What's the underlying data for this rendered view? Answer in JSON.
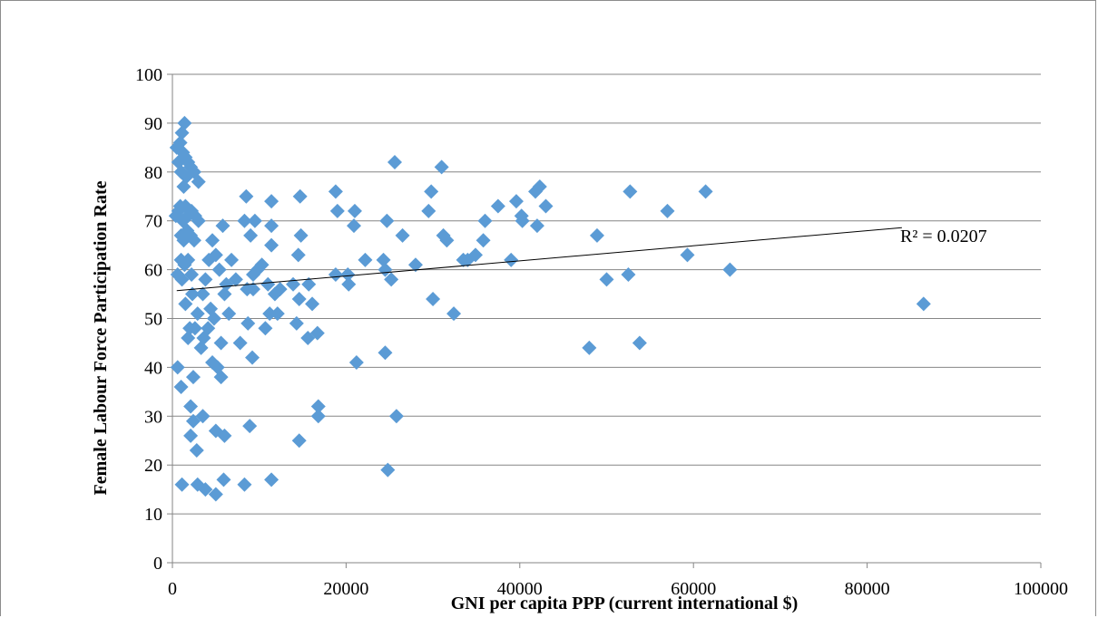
{
  "chart_data": {
    "type": "scatter",
    "title": "",
    "xlabel": "GNI per capita PPP (current international  $)",
    "ylabel": "Female Labour Force Participation Rate",
    "xlim": [
      0,
      100000
    ],
    "ylim": [
      0,
      100
    ],
    "x_ticks": [
      0,
      20000,
      40000,
      60000,
      80000,
      100000
    ],
    "y_ticks": [
      0,
      10,
      20,
      30,
      40,
      50,
      60,
      70,
      80,
      90,
      100
    ],
    "x_tick_labels": [
      "0",
      "20000",
      "40000",
      "60000",
      "80000",
      "100000"
    ],
    "y_tick_labels": [
      "0",
      "10",
      "20",
      "30",
      "40",
      "50",
      "60",
      "70",
      "80",
      "90",
      "100"
    ],
    "grid": "horizontal",
    "marker": "diamond",
    "marker_color": "#5b9bd5",
    "trendline": {
      "type": "linear",
      "x": [
        500,
        84000
      ],
      "y": [
        55.7,
        68.6
      ],
      "label": "R² = 0.0207"
    },
    "points": [
      [
        500,
        85
      ],
      [
        700,
        82
      ],
      [
        900,
        86
      ],
      [
        1100,
        88
      ],
      [
        1400,
        90
      ],
      [
        1200,
        84
      ],
      [
        1000,
        80
      ],
      [
        1300,
        77
      ],
      [
        1500,
        83
      ],
      [
        1800,
        82
      ],
      [
        2100,
        81
      ],
      [
        2500,
        80
      ],
      [
        3000,
        78
      ],
      [
        1600,
        79
      ],
      [
        400,
        71
      ],
      [
        700,
        72
      ],
      [
        900,
        73
      ],
      [
        1200,
        70
      ],
      [
        1500,
        73
      ],
      [
        1800,
        71
      ],
      [
        2200,
        72
      ],
      [
        2600,
        71
      ],
      [
        3000,
        70
      ],
      [
        1000,
        67
      ],
      [
        1300,
        66
      ],
      [
        1700,
        68
      ],
      [
        2100,
        67
      ],
      [
        2500,
        66
      ],
      [
        1000,
        62
      ],
      [
        1400,
        61
      ],
      [
        1800,
        62
      ],
      [
        2200,
        59
      ],
      [
        600,
        59
      ],
      [
        1100,
        58
      ],
      [
        1500,
        53
      ],
      [
        2300,
        55
      ],
      [
        2900,
        51
      ],
      [
        2000,
        48
      ],
      [
        2600,
        48
      ],
      [
        1800,
        46
      ],
      [
        3500,
        55
      ],
      [
        3800,
        58
      ],
      [
        4200,
        62
      ],
      [
        4600,
        66
      ],
      [
        5000,
        63
      ],
      [
        5400,
        60
      ],
      [
        5800,
        69
      ],
      [
        6200,
        57
      ],
      [
        4400,
        52
      ],
      [
        4800,
        50
      ],
      [
        3600,
        46
      ],
      [
        4100,
        48
      ],
      [
        3300,
        44
      ],
      [
        6000,
        55
      ],
      [
        6500,
        51
      ],
      [
        6800,
        62
      ],
      [
        5600,
        45
      ],
      [
        4600,
        41
      ],
      [
        5200,
        40
      ],
      [
        5600,
        38
      ],
      [
        600,
        40
      ],
      [
        1000,
        36
      ],
      [
        2400,
        38
      ],
      [
        2100,
        32
      ],
      [
        2400,
        29
      ],
      [
        3500,
        30
      ],
      [
        2100,
        26
      ],
      [
        2800,
        23
      ],
      [
        5000,
        27
      ],
      [
        6000,
        26
      ],
      [
        1100,
        16
      ],
      [
        2900,
        16
      ],
      [
        3800,
        15
      ],
      [
        5000,
        14
      ],
      [
        5900,
        17
      ],
      [
        8300,
        16
      ],
      [
        11400,
        17
      ],
      [
        7300,
        58
      ],
      [
        7800,
        45
      ],
      [
        8300,
        70
      ],
      [
        8500,
        75
      ],
      [
        8600,
        56
      ],
      [
        9000,
        67
      ],
      [
        9300,
        59
      ],
      [
        9500,
        70
      ],
      [
        9800,
        60
      ],
      [
        10300,
        61
      ],
      [
        10700,
        48
      ],
      [
        11000,
        57
      ],
      [
        11200,
        51
      ],
      [
        11400,
        74
      ],
      [
        11400,
        69
      ],
      [
        11400,
        65
      ],
      [
        11800,
        55
      ],
      [
        12100,
        51
      ],
      [
        12400,
        56
      ],
      [
        13900,
        57
      ],
      [
        9200,
        42
      ],
      [
        8900,
        28
      ],
      [
        8700,
        49
      ],
      [
        9300,
        56
      ],
      [
        14300,
        49
      ],
      [
        14500,
        63
      ],
      [
        14600,
        54
      ],
      [
        14700,
        75
      ],
      [
        14800,
        67
      ],
      [
        15600,
        46
      ],
      [
        15700,
        57
      ],
      [
        16100,
        53
      ],
      [
        16700,
        47
      ],
      [
        16800,
        32
      ],
      [
        16800,
        30
      ],
      [
        14600,
        25
      ],
      [
        18800,
        76
      ],
      [
        19000,
        72
      ],
      [
        18800,
        59
      ],
      [
        20200,
        59
      ],
      [
        20300,
        57
      ],
      [
        20900,
        69
      ],
      [
        21000,
        72
      ],
      [
        21200,
        41
      ],
      [
        22200,
        62
      ],
      [
        24300,
        62
      ],
      [
        24500,
        60
      ],
      [
        24500,
        43
      ],
      [
        24700,
        70
      ],
      [
        24800,
        19
      ],
      [
        25200,
        58
      ],
      [
        25600,
        82
      ],
      [
        25800,
        30
      ],
      [
        26500,
        67
      ],
      [
        28000,
        61
      ],
      [
        29500,
        72
      ],
      [
        29800,
        76
      ],
      [
        30000,
        54
      ],
      [
        31000,
        81
      ],
      [
        31200,
        67
      ],
      [
        31600,
        66
      ],
      [
        32400,
        51
      ],
      [
        33500,
        62
      ],
      [
        34000,
        62
      ],
      [
        34900,
        63
      ],
      [
        35800,
        66
      ],
      [
        36000,
        70
      ],
      [
        37500,
        73
      ],
      [
        39000,
        62
      ],
      [
        39600,
        74
      ],
      [
        40200,
        71
      ],
      [
        40300,
        70
      ],
      [
        41800,
        76
      ],
      [
        42000,
        69
      ],
      [
        42300,
        77
      ],
      [
        43000,
        73
      ],
      [
        48000,
        44
      ],
      [
        48900,
        67
      ],
      [
        50000,
        58
      ],
      [
        52500,
        59
      ],
      [
        52700,
        76
      ],
      [
        53800,
        45
      ],
      [
        57000,
        72
      ],
      [
        59300,
        63
      ],
      [
        61400,
        76
      ],
      [
        64200,
        60
      ],
      [
        86500,
        53
      ]
    ]
  }
}
